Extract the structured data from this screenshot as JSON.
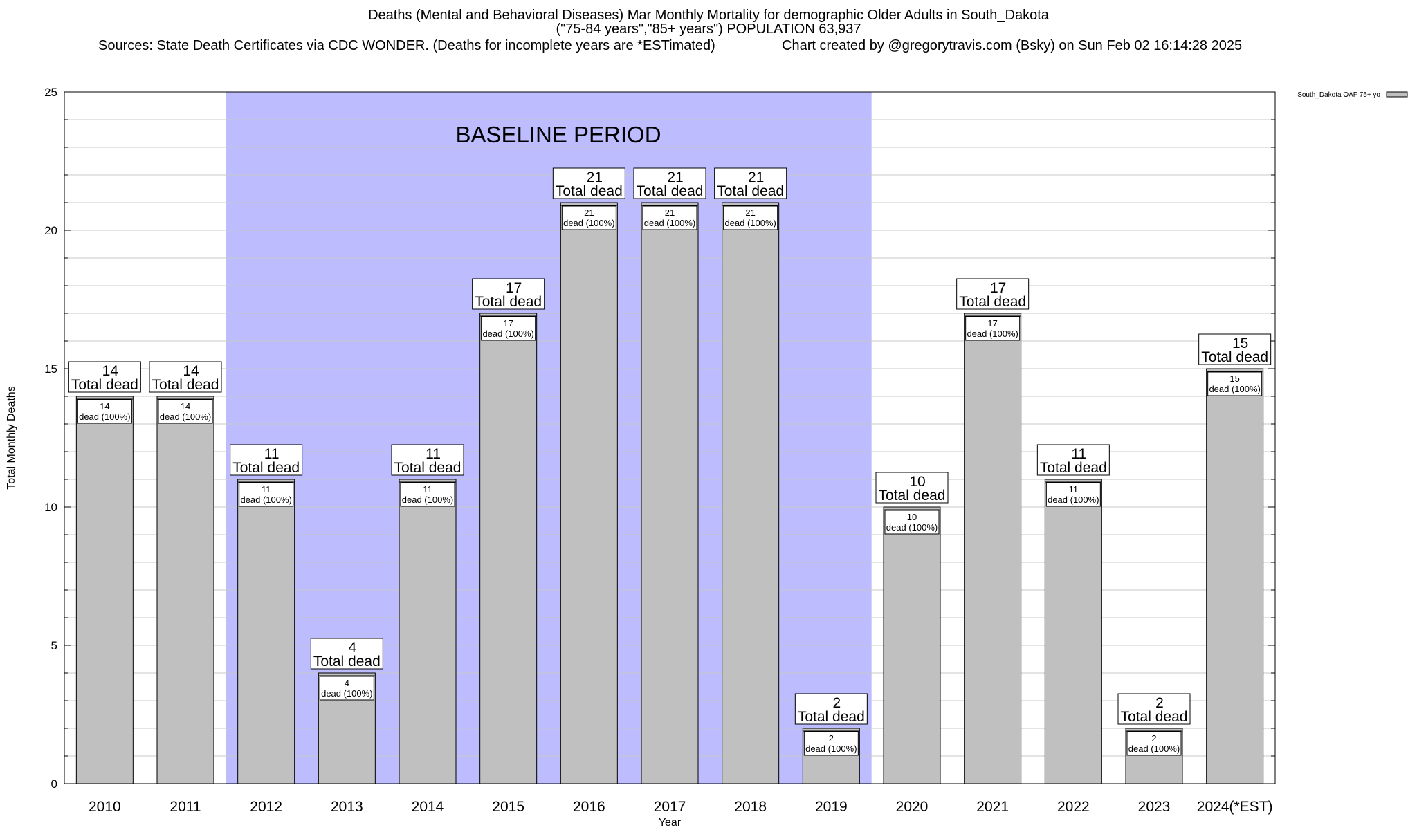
{
  "chart_data": {
    "type": "bar",
    "title": "Deaths (Mental and Behavioral Diseases) Mar Monthly Mortality for demographic Older Adults in South_Dakota",
    "subtitle": "(\"75-84 years\",\"85+ years\") POPULATION 63,937",
    "sources": "Sources: State Death Certificates via CDC WONDER. (Deaths for incomplete years are *ESTimated)",
    "credit": "Chart created by @gregorytravis.com (Bsky) on Sun Feb 02 16:14:28 2025",
    "xlabel": "Year",
    "ylabel": "Total Monthly Deaths",
    "ylim": [
      0,
      25
    ],
    "yticks": [
      0,
      5,
      10,
      15,
      20,
      25
    ],
    "grid": true,
    "legend": {
      "placement": "top-right",
      "label": "South_Dakota OAF 75+ yo"
    },
    "categories": [
      "2010",
      "2011",
      "2012",
      "2013",
      "2014",
      "2015",
      "2016",
      "2017",
      "2018",
      "2019",
      "2020",
      "2021",
      "2022",
      "2023",
      "2024(*EST)"
    ],
    "series": [
      {
        "name": "South_Dakota OAF 75+ yo",
        "values": [
          14,
          14,
          11,
          4,
          11,
          17,
          21,
          21,
          21,
          2,
          10,
          17,
          11,
          2,
          15
        ]
      }
    ],
    "total_label": "Total dead",
    "inner_label": "dead (100%)",
    "baseline": {
      "label": "BASELINE PERIOD",
      "start": "2012",
      "end": "2019",
      "color": "#bcbcff"
    },
    "bar_color": "#c0c0c0"
  }
}
